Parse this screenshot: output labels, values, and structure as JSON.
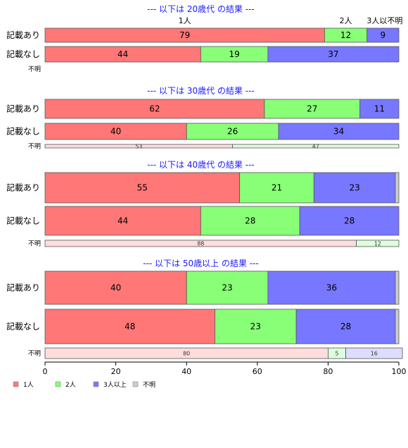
{
  "chart_data": {
    "type": "bar",
    "orientation": "horizontal-stacked",
    "categories": [
      "1人",
      "2人",
      "3人以上",
      "不明"
    ],
    "colors": {
      "1人": "#ff7777",
      "2人": "#88ff77",
      "3人以上": "#7777ff",
      "不明": "#cccccc"
    },
    "small_colors": {
      "1人": "#ffdddd",
      "2人": "#ddffdd",
      "3人以上": "#ddddff"
    },
    "column_headers": [
      "1人",
      "2人",
      "3人以不明"
    ],
    "xlim": [
      0,
      100
    ],
    "xticks": [
      0,
      20,
      40,
      60,
      80,
      100
    ],
    "legend_position": "bottom-left",
    "panels": [
      {
        "title": "--- 以下は 20歳代 の結果 ---",
        "rows": [
          {
            "label": "記載あり",
            "values": [
              79,
              12,
              9
            ],
            "labels": [
              "79",
              "12",
              "9"
            ]
          },
          {
            "label": "記載なし",
            "values": [
              44,
              19,
              37
            ],
            "labels": [
              "44",
              "19",
              "37"
            ]
          },
          {
            "label": "不明",
            "small": true,
            "values": [],
            "labels": []
          }
        ]
      },
      {
        "title": "--- 以下は 30歳代 の結果 ---",
        "rows": [
          {
            "label": "記載あり",
            "values": [
              62,
              27,
              11
            ],
            "labels": [
              "62",
              "27",
              "11"
            ]
          },
          {
            "label": "記載なし",
            "values": [
              40,
              26,
              34
            ],
            "labels": [
              "40",
              "26",
              "34"
            ]
          },
          {
            "label": "不明",
            "small": true,
            "values": [
              53,
              47
            ],
            "labels": [
              "53",
              "47"
            ]
          }
        ]
      },
      {
        "title": "--- 以下は 40歳代 の結果 ---",
        "rows": [
          {
            "label": "記載あり",
            "values": [
              55,
              21,
              23,
              1
            ],
            "labels": [
              "55",
              "21",
              "23",
              ""
            ]
          },
          {
            "label": "記載なし",
            "values": [
              44,
              28,
              28
            ],
            "labels": [
              "44",
              "28",
              "28"
            ]
          },
          {
            "label": "不明",
            "small": true,
            "values": [
              88,
              12
            ],
            "labels": [
              "88",
              "12"
            ]
          }
        ]
      },
      {
        "title": "--- 以下は 50歳以上 の結果 ---",
        "rows": [
          {
            "label": "記載あり",
            "values": [
              40,
              23,
              36,
              1
            ],
            "labels": [
              "40",
              "23",
              "36",
              ""
            ]
          },
          {
            "label": "記載なし",
            "values": [
              48,
              23,
              28,
              1
            ],
            "labels": [
              "48",
              "23",
              "28",
              ""
            ]
          },
          {
            "label": "不明",
            "small": true,
            "values": [
              80,
              5,
              16
            ],
            "labels": [
              "80",
              "5",
              "16"
            ]
          }
        ]
      }
    ]
  }
}
